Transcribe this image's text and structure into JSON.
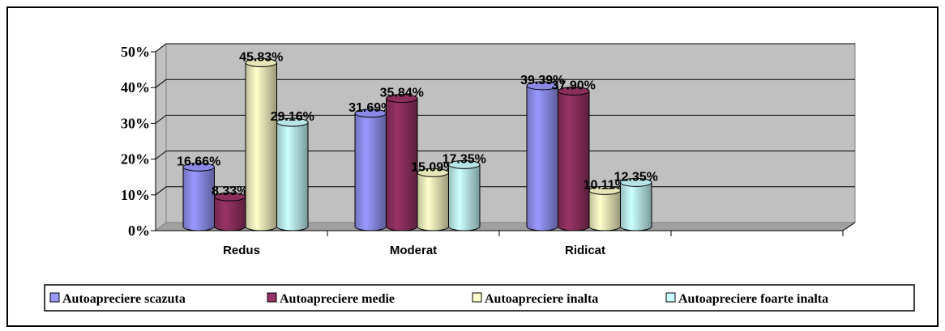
{
  "chart_data": {
    "type": "bar",
    "categories": [
      "Redus",
      "Moderat",
      "Ridicat",
      null
    ],
    "series": [
      {
        "name": "Autoapreciere scazuta",
        "color": "#9999ff",
        "values": [
          16.66,
          31.69,
          39.39,
          null
        ],
        "value_labels": [
          "16.66%",
          "31.69%",
          "39.39%",
          null
        ]
      },
      {
        "name": "Autoapreciere medie",
        "color": "#993366",
        "values": [
          8.33,
          35.84,
          37.9,
          null
        ],
        "value_labels": [
          "8.33%",
          "35.84%",
          "37.90%",
          null
        ]
      },
      {
        "name": "Autoapreciere inalta",
        "color": "#ffffcc",
        "values": [
          45.83,
          15.09,
          10.11,
          null
        ],
        "value_labels": [
          "45.83%",
          "15.09%",
          "10.11%",
          null
        ]
      },
      {
        "name": "Autoapreciere foarte inalta",
        "color": "#ccffff",
        "values": [
          29.16,
          17.35,
          12.35,
          null
        ],
        "value_labels": [
          "29.16%",
          "17.35%",
          "12.35%",
          null
        ]
      }
    ],
    "ylim": [
      0,
      50
    ],
    "yticks": [
      {
        "value": 0,
        "label": "0%"
      },
      {
        "value": 10,
        "label": "10%"
      },
      {
        "value": 20,
        "label": "20%"
      },
      {
        "value": 30,
        "label": "30%"
      },
      {
        "value": 40,
        "label": "40%"
      },
      {
        "value": 50,
        "label": "50%"
      }
    ],
    "grid": true,
    "legend": "bottom"
  }
}
